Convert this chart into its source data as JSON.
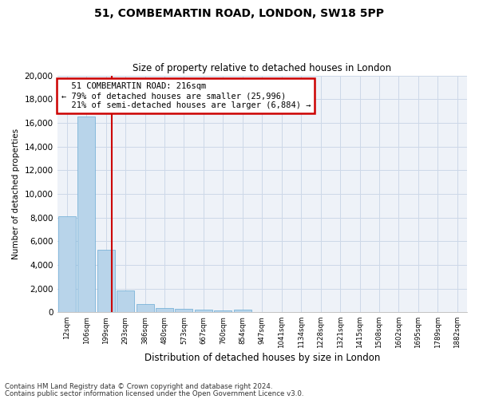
{
  "title1": "51, COMBEMARTIN ROAD, LONDON, SW18 5PP",
  "title2": "Size of property relative to detached houses in London",
  "xlabel": "Distribution of detached houses by size in London",
  "ylabel": "Number of detached properties",
  "bar_color": "#b8d4ea",
  "bar_edge_color": "#6aaad4",
  "grid_color": "#ccd8e8",
  "annotation_box_color": "#cc0000",
  "vline_color": "#cc0000",
  "categories": [
    "12sqm",
    "106sqm",
    "199sqm",
    "293sqm",
    "386sqm",
    "480sqm",
    "573sqm",
    "667sqm",
    "760sqm",
    "854sqm",
    "947sqm",
    "1041sqm",
    "1134sqm",
    "1228sqm",
    "1321sqm",
    "1415sqm",
    "1508sqm",
    "1602sqm",
    "1695sqm",
    "1789sqm",
    "1882sqm"
  ],
  "bar_heights": [
    8100,
    16500,
    5300,
    1850,
    700,
    350,
    270,
    200,
    160,
    200,
    0,
    0,
    0,
    0,
    0,
    0,
    0,
    0,
    0,
    0,
    0
  ],
  "ylim": [
    0,
    20000
  ],
  "yticks": [
    0,
    2000,
    4000,
    6000,
    8000,
    10000,
    12000,
    14000,
    16000,
    18000,
    20000
  ],
  "property_name": "51 COMBEMARTIN ROAD: 216sqm",
  "pct_smaller": 79,
  "n_smaller": "25,996",
  "pct_larger": 21,
  "n_larger": "6,884",
  "vline_position": 2.3,
  "footer1": "Contains HM Land Registry data © Crown copyright and database right 2024.",
  "footer2": "Contains public sector information licensed under the Open Government Licence v3.0.",
  "background_color": "#eef2f8"
}
